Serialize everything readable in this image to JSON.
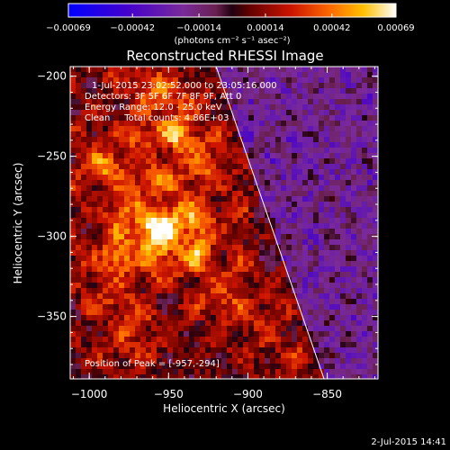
{
  "chart_data": {
    "type": "heatmap",
    "title": "Reconstructed RHESSI Image",
    "xlabel": "Heliocentric X (arcsec)",
    "ylabel": "Heliocentric Y (arcsec)",
    "xlim": [
      -1012,
      -818
    ],
    "ylim": [
      -389,
      -194
    ],
    "xticks": [
      -1000,
      -950,
      -900,
      -850
    ],
    "xtick_labels": [
      "−1000",
      "−950",
      "−900",
      "−850"
    ],
    "yticks": [
      -200,
      -250,
      -300,
      -350
    ],
    "ytick_labels": [
      "−200",
      "−250",
      "−300",
      "−350"
    ],
    "colorbar": {
      "range": [
        -0.00069,
        0.00069
      ],
      "ticks": [
        -0.00069,
        -0.00042,
        -0.00014,
        0.00014,
        0.00042,
        0.00069
      ],
      "tick_labels": [
        "−0.00069",
        "−0.00042",
        "−0.00014",
        "0.00014",
        "0.00042",
        "0.00069"
      ],
      "label": "(photons cm⁻² s⁻¹ asec⁻²)"
    },
    "annotations": {
      "time_range": "1-Jul-2015 23:02:52.000 to 23:05:16.000",
      "detectors": "Detectors: 3F 5F 6F 7F 8F 9F, Att 0",
      "energy": "Energy Range: 12.0 - 25.0 keV",
      "clean": "Clean     Total counts: 4.86E+03",
      "peak": "Position of Peak = [-957,-294]"
    },
    "peak": {
      "x": -957,
      "y": -294
    },
    "sources": [
      {
        "x": -957,
        "y": -294,
        "amp": 1.0
      },
      {
        "x": -945,
        "y": -235,
        "amp": 0.6
      },
      {
        "x": -988,
        "y": -257,
        "amp": 0.55
      },
      {
        "x": -985,
        "y": -318,
        "amp": 0.45
      },
      {
        "x": -930,
        "y": -310,
        "amp": 0.45
      },
      {
        "x": -960,
        "y": -205,
        "amp": 0.4
      },
      {
        "x": -908,
        "y": -345,
        "amp": 0.35
      },
      {
        "x": -975,
        "y": -360,
        "amp": 0.35
      },
      {
        "x": -925,
        "y": -265,
        "amp": 0.35
      },
      {
        "x": -870,
        "y": -375,
        "amp": 0.25
      }
    ],
    "limb_line": [
      {
        "x": -920,
        "y": -194
      },
      {
        "x": -852,
        "y": -389
      }
    ],
    "footer_date": "2-Jul-2015 14:41"
  }
}
